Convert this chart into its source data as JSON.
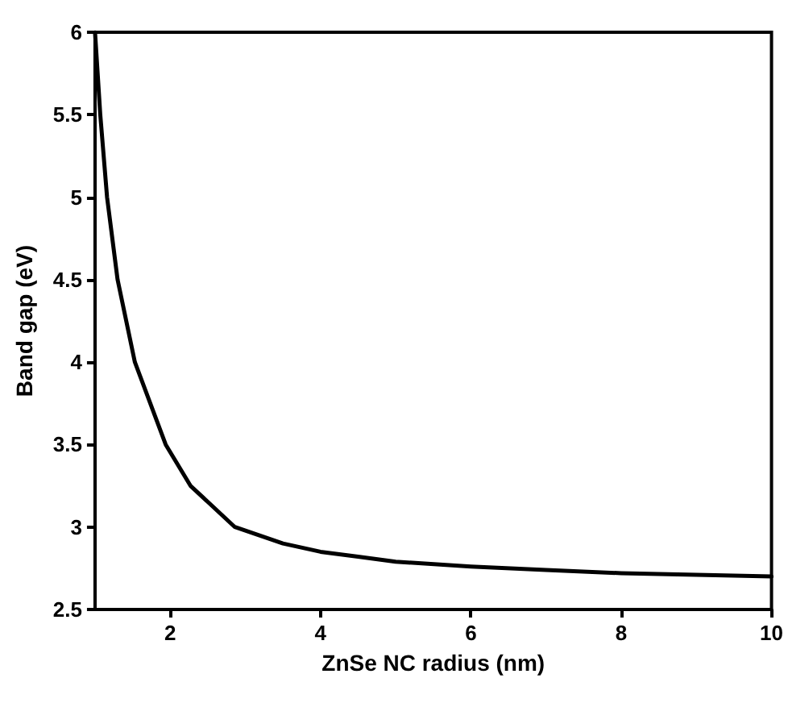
{
  "chart_data": {
    "type": "line",
    "xlabel": "ZnSe NC radius (nm)",
    "ylabel": "Band gap (eV)",
    "x": [
      1,
      1.07,
      1.16,
      1.3,
      1.53,
      1.94,
      2.27,
      2.86,
      3.5,
      4,
      4.5,
      5,
      6,
      7,
      8,
      9,
      10
    ],
    "values": [
      6,
      5.5,
      5,
      4.5,
      4,
      3.5,
      3.25,
      3,
      2.9,
      2.85,
      2.82,
      2.79,
      2.76,
      2.74,
      2.72,
      2.71,
      2.7
    ],
    "color": "#000000",
    "xlim": [
      1,
      10
    ],
    "xticks": [
      2,
      4,
      6,
      8,
      10
    ],
    "ylim": [
      2.5,
      6
    ],
    "yticks": [
      2.5,
      3,
      3.5,
      4,
      4.5,
      5,
      5.5,
      6
    ],
    "grid": false,
    "marker": "none",
    "line_style": "solid"
  }
}
